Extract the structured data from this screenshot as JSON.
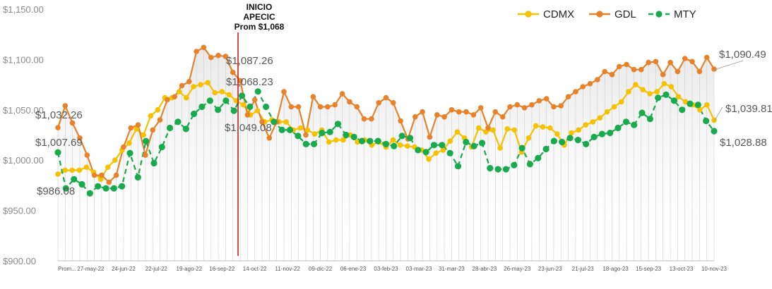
{
  "colors": {
    "cdmx": "#F5C100",
    "gdl": "#E8822A",
    "mty": "#1AAA4E",
    "marker_line": "#C00000",
    "grid": "#D0D0D0",
    "area_top": "#E6E6E6"
  },
  "chart_data": {
    "type": "line",
    "title": "",
    "xlabel": "",
    "ylabel": "",
    "ylim": [
      900,
      1150
    ],
    "yticks": [
      "$900.00",
      "$950.00",
      "$1,000.00",
      "$1,050.00",
      "$1,100.00",
      "$1,150.00"
    ],
    "ytick_values": [
      900,
      950,
      1000,
      1050,
      1100,
      1150
    ],
    "x_tick_labels": [
      {
        "i": 0,
        "label": "Prom..."
      },
      {
        "i": 2,
        "label": "27-may-22"
      },
      {
        "i": 4,
        "label": "24-jun-22"
      },
      {
        "i": 6,
        "label": "22-jul-22"
      },
      {
        "i": 8,
        "label": "19-ago-22"
      },
      {
        "i": 10,
        "label": "16-sep-22"
      },
      {
        "i": 12,
        "label": "14-oct-22"
      },
      {
        "i": 14,
        "label": "11-nov-22"
      },
      {
        "i": 16,
        "label": "09-dic-22"
      },
      {
        "i": 18,
        "label": "06-ene-23"
      },
      {
        "i": 20,
        "label": "03-feb-23"
      },
      {
        "i": 22,
        "label": "03-mar-23"
      },
      {
        "i": 24,
        "label": "31-mar-23"
      },
      {
        "i": 26,
        "label": "28-abr-23"
      },
      {
        "i": 28,
        "label": "26-may-23"
      },
      {
        "i": 30,
        "label": "23-jun-23"
      },
      {
        "i": 32,
        "label": "21-jul-23"
      },
      {
        "i": 34,
        "label": "18-ago-23"
      },
      {
        "i": 36,
        "label": "15-sep-23"
      },
      {
        "i": 38,
        "label": "13-oct-23"
      },
      {
        "i": 40,
        "label": "10-nov-23"
      }
    ],
    "legend_position": "top-right",
    "grid": "vertical",
    "series": [
      {
        "name": "CDMX",
        "key": "cdmx",
        "style": "solid",
        "values": [
          986.08,
          990,
          990,
          990,
          993,
          988,
          981,
          993,
          1000,
          1010,
          1017,
          1031,
          1025,
          1044,
          1050,
          1062,
          1062,
          1068,
          1062,
          1073,
          1075,
          1077,
          1067,
          1068,
          1065,
          1059,
          1055,
          1045,
          1049.08,
          1038,
          1040,
          1038,
          1038,
          1030,
          1032,
          1030,
          1026,
          1030,
          1018,
          1020,
          1020,
          1025,
          1018,
          1020,
          1015,
          1018,
          1013,
          1020,
          1015,
          1014,
          1013,
          1010,
          1001,
          1007,
          1010,
          1019,
          1028,
          1022,
          1013,
          1032,
          1028,
          1030,
          1012,
          1031,
          1030,
          1008,
          1022,
          1034,
          1033,
          1032,
          1026,
          1015,
          1027,
          1030,
          1035,
          1038,
          1042,
          1048,
          1053,
          1058,
          1068,
          1075,
          1070,
          1066,
          1068,
          1076,
          1073,
          1063,
          1058,
          1055,
          1050,
          1055,
          1039.81
        ]
      },
      {
        "name": "GDL",
        "key": "gdl",
        "style": "solid",
        "values": [
          1032.26,
          1054,
          1037,
          1022,
          1005,
          985,
          985,
          978,
          985,
          1013,
          1032,
          1035,
          1005,
          1030,
          1040,
          1060,
          1063,
          1074,
          1078,
          1108,
          1112,
          1102,
          1104,
          1103,
          1087.26,
          1079,
          1045,
          1060,
          1038,
          1022,
          1038,
          1068,
          1053,
          1053,
          1025,
          1063,
          1053,
          1053,
          1055,
          1066,
          1058,
          1053,
          1041,
          1041,
          1057,
          1062,
          1057,
          1039,
          1021,
          1043,
          1048,
          1023,
          1045,
          1043,
          1050,
          1048,
          1048,
          1045,
          1052,
          1032,
          1048,
          1043,
          1053,
          1055,
          1052,
          1055,
          1059,
          1061,
          1053,
          1054,
          1063,
          1068,
          1073,
          1076,
          1080,
          1088,
          1085,
          1093,
          1095,
          1090,
          1090,
          1097,
          1098,
          1085,
          1097,
          1088,
          1101,
          1098,
          1088,
          1102,
          1090.49
        ]
      },
      {
        "name": "MTY",
        "key": "mty",
        "style": "dashed",
        "values": [
          1007.69,
          972,
          981,
          976,
          967,
          974,
          972,
          972,
          974,
          1007,
          983,
          1019,
          997,
          1013,
          1032,
          1038,
          1031,
          1046,
          1053,
          1059,
          1050,
          1059,
          1049.08,
          1064,
          1053,
          1068.23,
          1053,
          1038,
          1030,
          1030,
          1024,
          1016,
          1016,
          1027,
          1028,
          1036,
          1025,
          1023,
          1019,
          1019,
          1019,
          1016,
          1014,
          1024,
          1022,
          1010,
          1008,
          1015,
          1015,
          1007,
          994,
          1018,
          1014,
          1017,
          992,
          991,
          991,
          995,
          1012,
          996,
          1002,
          1011,
          1019,
          1018,
          1022,
          1020,
          1016,
          1023,
          1026,
          1027,
          1032,
          1038,
          1035,
          1047,
          1041,
          1062,
          1065,
          1059,
          1050,
          1056,
          1055,
          1039,
          1028.88
        ]
      }
    ],
    "annotations": [
      {
        "series": "cdmx",
        "i": 0,
        "text": "$986.08"
      },
      {
        "series": "mty",
        "i": 0,
        "text": "$1,007.69"
      },
      {
        "series": "gdl",
        "i": 0,
        "text": "$1,032.26"
      },
      {
        "series": "gdl",
        "i": 24,
        "text": "$1,087.26"
      },
      {
        "series": "mty",
        "i": 25,
        "text": "$1,068.23"
      },
      {
        "series": "mty",
        "i": 22,
        "text": "$1,049.08"
      },
      {
        "series": "gdl",
        "i": 90,
        "text": "$1,090.49"
      },
      {
        "series": "cdmx",
        "i": 92,
        "text": "$1,039.81"
      },
      {
        "series": "mty",
        "i": 82,
        "text": "$1,028.88"
      }
    ],
    "marker": {
      "lines": [
        "INICIO",
        "APECIC",
        "Prom $1,068"
      ]
    }
  }
}
